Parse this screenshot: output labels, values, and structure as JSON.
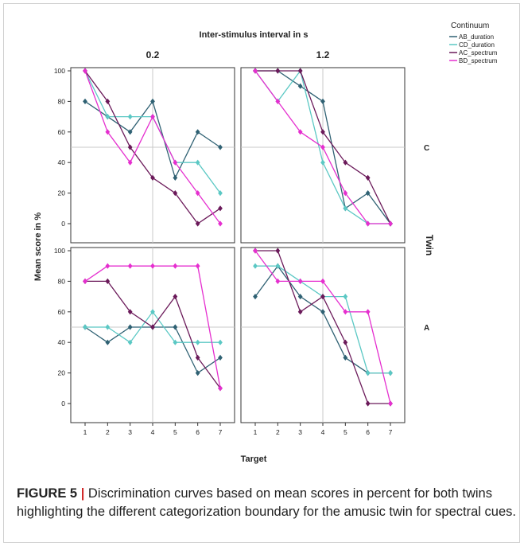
{
  "chart_data": {
    "type": "line",
    "title": "Inter-stimulus interval in s",
    "xlabel": "Target",
    "ylabel": "Mean score in %",
    "facet_row_label": "Twin",
    "column_facets": [
      "0.2",
      "1.2"
    ],
    "row_facets": [
      "C",
      "A"
    ],
    "x": [
      1,
      2,
      3,
      4,
      5,
      6,
      7
    ],
    "x_ticks": [
      "1",
      "2",
      "3",
      "4",
      "5",
      "6",
      "7"
    ],
    "y_ticks": [
      "0",
      "20",
      "40",
      "60",
      "80",
      "100"
    ],
    "ylim": [
      0,
      100
    ],
    "reference_lines": {
      "x": 4,
      "y": 50
    },
    "legend": {
      "title": "Continuum",
      "placement": "top-right",
      "entries": [
        {
          "name": "AB_duration",
          "color": "#2f6173"
        },
        {
          "name": "CD_duration",
          "color": "#5bc8c4"
        },
        {
          "name": "AC_spectrum",
          "color": "#6b1a5a"
        },
        {
          "name": "BD_spectrum",
          "color": "#e52fcf"
        }
      ]
    },
    "panels": [
      {
        "isi": "0.2",
        "twin": "C",
        "series": [
          {
            "name": "AB_duration",
            "values": [
              80,
              70,
              60,
              80,
              30,
              60,
              50
            ]
          },
          {
            "name": "CD_duration",
            "values": [
              100,
              70,
              70,
              70,
              40,
              40,
              20
            ]
          },
          {
            "name": "AC_spectrum",
            "values": [
              100,
              80,
              50,
              30,
              20,
              0,
              10
            ]
          },
          {
            "name": "BD_spectrum",
            "values": [
              100,
              60,
              40,
              70,
              40,
              20,
              0
            ]
          }
        ]
      },
      {
        "isi": "1.2",
        "twin": "C",
        "series": [
          {
            "name": "AB_duration",
            "values": [
              100,
              100,
              90,
              80,
              10,
              20,
              0
            ]
          },
          {
            "name": "CD_duration",
            "values": [
              100,
              80,
              100,
              40,
              10,
              0,
              0
            ]
          },
          {
            "name": "AC_spectrum",
            "values": [
              100,
              100,
              100,
              60,
              40,
              30,
              0
            ]
          },
          {
            "name": "BD_spectrum",
            "values": [
              100,
              80,
              60,
              50,
              20,
              0,
              0
            ]
          }
        ]
      },
      {
        "isi": "0.2",
        "twin": "A",
        "series": [
          {
            "name": "AB_duration",
            "values": [
              50,
              40,
              50,
              50,
              50,
              20,
              30
            ]
          },
          {
            "name": "CD_duration",
            "values": [
              50,
              50,
              40,
              60,
              40,
              40,
              40
            ]
          },
          {
            "name": "AC_spectrum",
            "values": [
              80,
              80,
              60,
              50,
              70,
              30,
              10
            ]
          },
          {
            "name": "BD_spectrum",
            "values": [
              80,
              90,
              90,
              90,
              90,
              90,
              10
            ]
          }
        ]
      },
      {
        "isi": "1.2",
        "twin": "A",
        "series": [
          {
            "name": "AB_duration",
            "values": [
              70,
              90,
              70,
              60,
              30,
              20,
              20
            ]
          },
          {
            "name": "CD_duration",
            "values": [
              90,
              90,
              80,
              70,
              70,
              20,
              20
            ]
          },
          {
            "name": "AC_spectrum",
            "values": [
              100,
              100,
              60,
              70,
              40,
              0,
              0
            ]
          },
          {
            "name": "BD_spectrum",
            "values": [
              100,
              80,
              80,
              80,
              60,
              60,
              0
            ]
          }
        ]
      }
    ]
  },
  "caption": {
    "label": "FIGURE 5",
    "separator": "|",
    "text": " Discrimination curves based on mean scores in percent for both twins highlighting the different categorization boundary for the amusic twin for spectral cues."
  }
}
